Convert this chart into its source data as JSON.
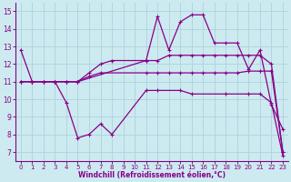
{
  "xlabel": "Windchill (Refroidissement éolien,°C)",
  "background_color": "#cdeaf0",
  "grid_color": "#aad4dc",
  "line_color": "#880088",
  "xlim": [
    -0.5,
    23.5
  ],
  "ylim": [
    6.5,
    15.5
  ],
  "xticks": [
    0,
    1,
    2,
    3,
    4,
    5,
    6,
    7,
    8,
    9,
    10,
    11,
    12,
    13,
    14,
    15,
    16,
    17,
    18,
    19,
    20,
    21,
    22,
    23
  ],
  "yticks": [
    7,
    8,
    9,
    10,
    11,
    12,
    13,
    14,
    15
  ],
  "curves": {
    "curve1_zigzag_bottom": {
      "x": [
        0,
        1,
        3,
        4,
        5,
        6,
        7,
        8,
        11,
        12,
        14,
        15,
        18,
        20,
        21,
        22,
        23
      ],
      "y": [
        11.0,
        11.0,
        11.0,
        9.8,
        7.8,
        8.0,
        8.6,
        8.0,
        10.5,
        10.5,
        10.5,
        10.3,
        10.3,
        10.3,
        10.3,
        9.8,
        6.8
      ]
    },
    "curve2_big_peak": {
      "x": [
        0,
        1,
        2,
        3,
        4,
        5,
        11,
        12,
        13,
        14,
        15,
        16,
        17,
        18,
        19,
        20,
        21,
        22,
        23
      ],
      "y": [
        12.8,
        11.0,
        11.0,
        11.0,
        11.0,
        11.0,
        12.2,
        14.7,
        12.8,
        14.4,
        14.8,
        14.8,
        13.2,
        13.2,
        13.2,
        11.7,
        12.8,
        9.7,
        8.3
      ]
    },
    "curve3_mid_flat": {
      "x": [
        0,
        1,
        2,
        3,
        4,
        5,
        6,
        7,
        11,
        12,
        13,
        14,
        15,
        16,
        17,
        18,
        19,
        20,
        21,
        22,
        23
      ],
      "y": [
        11.0,
        11.0,
        11.0,
        11.0,
        11.0,
        11.0,
        11.3,
        11.5,
        11.5,
        11.5,
        11.5,
        11.5,
        11.5,
        11.5,
        11.5,
        11.5,
        11.5,
        11.6,
        11.6,
        11.6,
        7.0
      ]
    },
    "curve4_upper_flat": {
      "x": [
        0,
        1,
        2,
        3,
        4,
        5,
        6,
        7,
        8,
        11,
        12,
        13,
        14,
        15,
        16,
        17,
        18,
        19,
        20,
        21,
        22,
        23
      ],
      "y": [
        11.0,
        11.0,
        11.0,
        11.0,
        11.0,
        11.0,
        11.5,
        12.0,
        12.2,
        12.2,
        12.2,
        12.5,
        12.5,
        12.5,
        12.5,
        12.5,
        12.5,
        12.5,
        12.5,
        12.5,
        12.0,
        7.0
      ]
    }
  }
}
